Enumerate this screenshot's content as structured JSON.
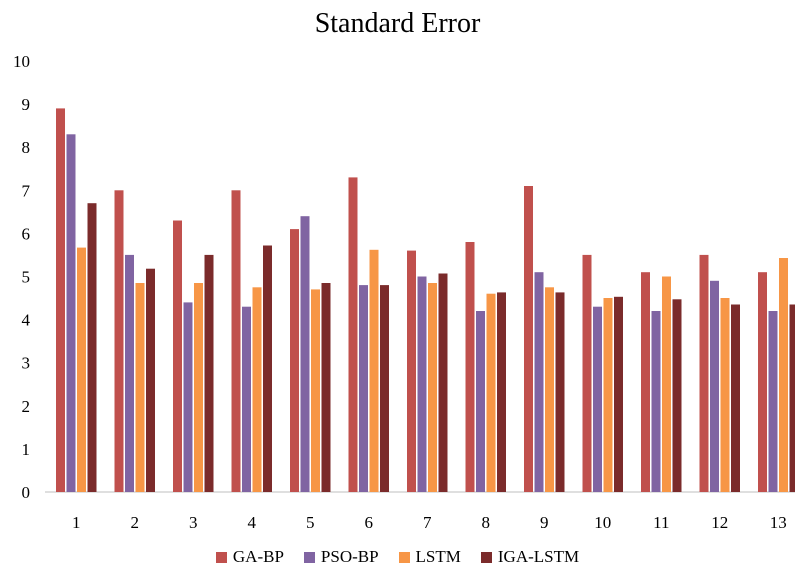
{
  "chart_data": {
    "type": "bar",
    "title": "Standard Error",
    "xlabel": "",
    "ylabel": "",
    "ylim": [
      0,
      10
    ],
    "yticks": [
      "0",
      "1",
      "2",
      "3",
      "4",
      "5",
      "6",
      "7",
      "8",
      "9",
      "10"
    ],
    "grid": false,
    "legend_position": "bottom",
    "categories": [
      "1",
      "2",
      "3",
      "4",
      "5",
      "6",
      "7",
      "8",
      "9",
      "10",
      "11",
      "12",
      "13"
    ],
    "series": [
      {
        "name": "GA-BP",
        "color": "#c0504d",
        "values": [
          8.9,
          7.0,
          6.3,
          7.0,
          6.1,
          7.3,
          5.6,
          5.8,
          7.1,
          5.5,
          5.1,
          5.5,
          5.1
        ]
      },
      {
        "name": "PSO-BP",
        "color": "#8064a2",
        "values": [
          8.3,
          5.5,
          4.4,
          4.3,
          6.4,
          4.8,
          5.0,
          4.2,
          5.1,
          4.3,
          4.2,
          4.9,
          4.2
        ]
      },
      {
        "name": "LSTM",
        "color": "#f79646",
        "values": [
          5.67,
          4.85,
          4.85,
          4.75,
          4.7,
          5.62,
          4.85,
          4.6,
          4.75,
          4.5,
          5.0,
          4.5,
          5.43
        ]
      },
      {
        "name": "IGA-LSTM",
        "color": "#7b2b2b",
        "values": [
          6.7,
          5.18,
          5.5,
          5.72,
          4.85,
          4.8,
          5.07,
          4.63,
          4.63,
          4.53,
          4.47,
          4.35,
          4.35
        ]
      }
    ]
  }
}
